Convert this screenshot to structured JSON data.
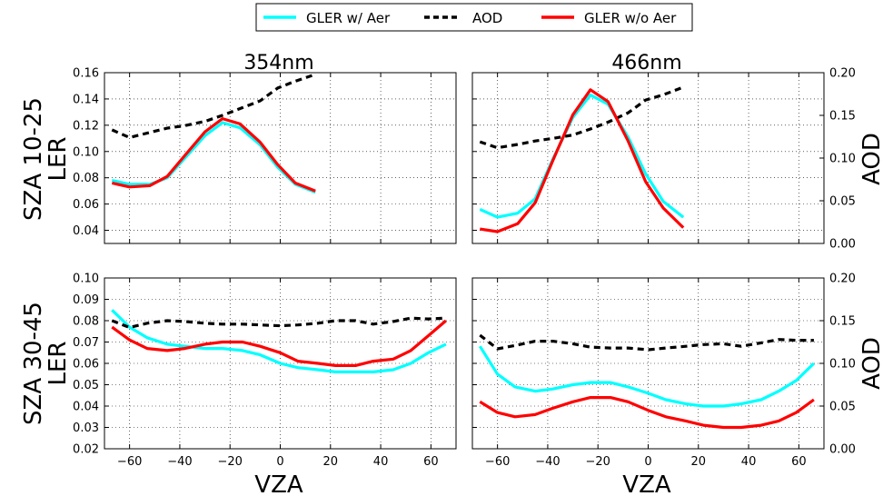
{
  "legend": {
    "items": [
      {
        "label": "GLER w/ Aer",
        "color": "#00ffff",
        "style": "solid"
      },
      {
        "label": "AOD",
        "color": "#000000",
        "style": "dashed"
      },
      {
        "label": "GLER w/o Aer",
        "color": "#ff0000",
        "style": "solid"
      }
    ],
    "placement": "top-center"
  },
  "figure": {
    "col_titles": [
      "354nm",
      "466nm"
    ],
    "row_labels": [
      {
        "line1": "SZA 10-25",
        "line2": "LER"
      },
      {
        "line1": "SZA 30-45",
        "line2": "LER"
      }
    ],
    "xlabel": "VZA",
    "right_ylabel": "AOD"
  },
  "chart_data": [
    {
      "type": "line",
      "row": 0,
      "col": 0,
      "title": "354nm",
      "xlabel": "",
      "ylabel": "LER",
      "y2label": "",
      "xlim": [
        -70,
        70
      ],
      "ylim": [
        0.03,
        0.16
      ],
      "y2lim": [
        0.0,
        0.2
      ],
      "xticks": [
        -60,
        -40,
        -20,
        0,
        20,
        40,
        60
      ],
      "yticks": [
        0.04,
        0.06,
        0.08,
        0.1,
        0.12,
        0.14,
        0.16
      ],
      "y2ticks": [],
      "ytick_labels": [
        "0.04",
        "0.06",
        "0.08",
        "0.10",
        "0.12",
        "0.14",
        "0.16"
      ],
      "xtick_labels": [],
      "y2tick_labels": [],
      "grid": true,
      "series": [
        {
          "name": "GLER w/ Aer",
          "axis": "left",
          "x": [
            -67,
            -60,
            -52,
            -45,
            -38,
            -30,
            -23,
            -16,
            -8,
            -1,
            6,
            14
          ],
          "y": [
            0.078,
            0.075,
            0.075,
            0.08,
            0.095,
            0.112,
            0.122,
            0.118,
            0.105,
            0.088,
            0.075,
            0.069
          ]
        },
        {
          "name": "AOD",
          "axis": "right",
          "x": [
            -67,
            -60,
            -52,
            -45,
            -38,
            -30,
            -23,
            -16,
            -8,
            -1,
            6,
            14
          ],
          "y": [
            0.133,
            0.124,
            0.13,
            0.135,
            0.138,
            0.143,
            0.15,
            0.158,
            0.167,
            0.182,
            0.19,
            0.198
          ]
        },
        {
          "name": "GLER w/o Aer",
          "axis": "left",
          "x": [
            -67,
            -60,
            -52,
            -45,
            -38,
            -30,
            -23,
            -16,
            -8,
            -1,
            6,
            14
          ],
          "y": [
            0.076,
            0.073,
            0.074,
            0.081,
            0.097,
            0.115,
            0.125,
            0.121,
            0.107,
            0.09,
            0.076,
            0.07
          ]
        }
      ]
    },
    {
      "type": "line",
      "row": 0,
      "col": 1,
      "title": "466nm",
      "xlabel": "",
      "ylabel": "",
      "y2label": "AOD",
      "xlim": [
        -70,
        70
      ],
      "ylim": [
        0.03,
        0.16
      ],
      "y2lim": [
        0.0,
        0.2
      ],
      "xticks": [
        -60,
        -40,
        -20,
        0,
        20,
        40,
        60
      ],
      "yticks": [
        0.04,
        0.06,
        0.08,
        0.1,
        0.12,
        0.14,
        0.16
      ],
      "y2ticks": [
        0.0,
        0.05,
        0.1,
        0.15,
        0.2
      ],
      "ytick_labels": [],
      "xtick_labels": [],
      "y2tick_labels": [
        "0.00",
        "0.05",
        "0.10",
        "0.15",
        "0.20"
      ],
      "grid": true,
      "series": [
        {
          "name": "GLER w/ Aer",
          "axis": "left",
          "x": [
            -67,
            -60,
            -52,
            -45,
            -38,
            -30,
            -23,
            -16,
            -8,
            -1,
            6,
            14
          ],
          "y": [
            0.056,
            0.05,
            0.053,
            0.064,
            0.094,
            0.126,
            0.143,
            0.136,
            0.111,
            0.083,
            0.062,
            0.05
          ]
        },
        {
          "name": "AOD",
          "axis": "right",
          "x": [
            -67,
            -60,
            -52,
            -45,
            -38,
            -30,
            -23,
            -16,
            -8,
            -1,
            6,
            14
          ],
          "y": [
            0.119,
            0.112,
            0.116,
            0.12,
            0.123,
            0.127,
            0.134,
            0.142,
            0.153,
            0.168,
            0.174,
            0.183
          ]
        },
        {
          "name": "GLER w/o Aer",
          "axis": "left",
          "x": [
            -67,
            -60,
            -52,
            -45,
            -38,
            -30,
            -23,
            -16,
            -8,
            -1,
            6,
            14
          ],
          "y": [
            0.041,
            0.039,
            0.045,
            0.061,
            0.093,
            0.128,
            0.147,
            0.138,
            0.108,
            0.077,
            0.057,
            0.042
          ]
        }
      ]
    },
    {
      "type": "line",
      "row": 1,
      "col": 0,
      "title": "",
      "xlabel": "VZA",
      "ylabel": "LER",
      "y2label": "",
      "xlim": [
        -70,
        70
      ],
      "ylim": [
        0.02,
        0.1
      ],
      "y2lim": [
        0.0,
        0.2
      ],
      "xticks": [
        -60,
        -40,
        -20,
        0,
        20,
        40,
        60
      ],
      "yticks": [
        0.02,
        0.03,
        0.04,
        0.05,
        0.06,
        0.07,
        0.08,
        0.09,
        0.1
      ],
      "y2ticks": [],
      "ytick_labels": [
        "0.02",
        "0.03",
        "0.04",
        "0.05",
        "0.06",
        "0.07",
        "0.08",
        "0.09",
        "0.10"
      ],
      "xtick_labels": [
        "−60",
        "−40",
        "−20",
        "0",
        "20",
        "40",
        "60"
      ],
      "y2tick_labels": [],
      "grid": true,
      "series": [
        {
          "name": "GLER w/ Aer",
          "axis": "left",
          "x": [
            -67,
            -60,
            -53,
            -45,
            -38,
            -30,
            -23,
            -15,
            -8,
            0,
            7,
            15,
            22,
            30,
            37,
            45,
            52,
            59,
            66
          ],
          "y": [
            0.085,
            0.077,
            0.072,
            0.069,
            0.068,
            0.067,
            0.067,
            0.066,
            0.064,
            0.06,
            0.058,
            0.057,
            0.056,
            0.056,
            0.056,
            0.057,
            0.06,
            0.065,
            0.069
          ]
        },
        {
          "name": "AOD",
          "axis": "right",
          "x": [
            -67,
            -60,
            -53,
            -45,
            -38,
            -30,
            -23,
            -15,
            -8,
            0,
            7,
            15,
            22,
            30,
            37,
            45,
            52,
            59,
            66
          ],
          "y": [
            0.15,
            0.142,
            0.147,
            0.15,
            0.149,
            0.147,
            0.146,
            0.146,
            0.145,
            0.144,
            0.145,
            0.147,
            0.15,
            0.15,
            0.146,
            0.149,
            0.153,
            0.152,
            0.153
          ]
        },
        {
          "name": "GLER w/o Aer",
          "axis": "left",
          "x": [
            -67,
            -60,
            -53,
            -45,
            -38,
            -30,
            -23,
            -15,
            -8,
            0,
            7,
            15,
            22,
            30,
            37,
            45,
            52,
            59,
            66
          ],
          "y": [
            0.077,
            0.071,
            0.067,
            0.066,
            0.067,
            0.069,
            0.07,
            0.07,
            0.068,
            0.065,
            0.061,
            0.06,
            0.059,
            0.059,
            0.061,
            0.062,
            0.066,
            0.073,
            0.08
          ]
        }
      ]
    },
    {
      "type": "line",
      "row": 1,
      "col": 1,
      "title": "",
      "xlabel": "VZA",
      "ylabel": "",
      "y2label": "AOD",
      "xlim": [
        -70,
        70
      ],
      "ylim": [
        0.02,
        0.1
      ],
      "y2lim": [
        0.0,
        0.2
      ],
      "xticks": [
        -60,
        -40,
        -20,
        0,
        20,
        40,
        60
      ],
      "yticks": [
        0.02,
        0.03,
        0.04,
        0.05,
        0.06,
        0.07,
        0.08,
        0.09,
        0.1
      ],
      "y2ticks": [
        0.0,
        0.05,
        0.1,
        0.15,
        0.2
      ],
      "ytick_labels": [],
      "xtick_labels": [
        "−60",
        "−40",
        "−20",
        "0",
        "20",
        "40",
        "60"
      ],
      "y2tick_labels": [
        "0.00",
        "0.05",
        "0.10",
        "0.15",
        "0.20"
      ],
      "grid": true,
      "series": [
        {
          "name": "GLER w/ Aer",
          "axis": "left",
          "x": [
            -67,
            -60,
            -53,
            -45,
            -38,
            -30,
            -23,
            -15,
            -8,
            0,
            7,
            15,
            22,
            30,
            37,
            45,
            52,
            59,
            66
          ],
          "y": [
            0.068,
            0.055,
            0.049,
            0.047,
            0.048,
            0.05,
            0.051,
            0.051,
            0.049,
            0.046,
            0.043,
            0.041,
            0.04,
            0.04,
            0.041,
            0.043,
            0.047,
            0.052,
            0.06
          ]
        },
        {
          "name": "AOD",
          "axis": "right",
          "x": [
            -67,
            -60,
            -53,
            -45,
            -38,
            -30,
            -23,
            -15,
            -8,
            0,
            7,
            15,
            22,
            30,
            37,
            45,
            52,
            59,
            66
          ],
          "y": [
            0.133,
            0.117,
            0.121,
            0.126,
            0.126,
            0.123,
            0.119,
            0.118,
            0.118,
            0.116,
            0.118,
            0.12,
            0.122,
            0.123,
            0.12,
            0.124,
            0.128,
            0.127,
            0.127
          ]
        },
        {
          "name": "GLER w/o Aer",
          "axis": "left",
          "x": [
            -67,
            -60,
            -53,
            -45,
            -38,
            -30,
            -23,
            -15,
            -8,
            0,
            7,
            15,
            22,
            30,
            37,
            45,
            52,
            59,
            66
          ],
          "y": [
            0.042,
            0.037,
            0.035,
            0.036,
            0.039,
            0.042,
            0.044,
            0.044,
            0.042,
            0.038,
            0.035,
            0.033,
            0.031,
            0.03,
            0.03,
            0.031,
            0.033,
            0.037,
            0.043
          ]
        }
      ]
    }
  ]
}
